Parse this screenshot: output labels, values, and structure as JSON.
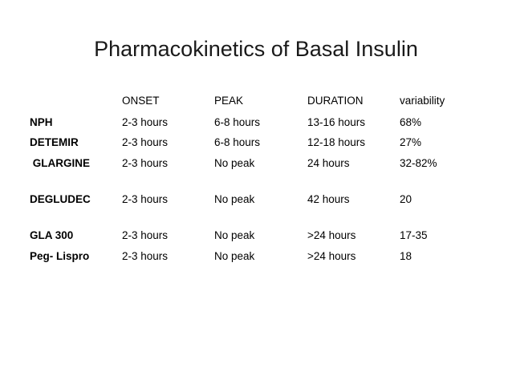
{
  "slide": {
    "title": "Pharmacokinetics of Basal Insulin"
  },
  "table": {
    "headers": [
      "ONSET",
      "PEAK",
      "DURATION",
      "variability"
    ],
    "rows": [
      {
        "name": "NPH",
        "cells": [
          "2-3 hours",
          "6-8 hours",
          "13-16 hours",
          "68%"
        ]
      },
      {
        "name": "DETEMIR",
        "cells": [
          "2-3 hours",
          "6-8 hours",
          "12-18 hours",
          "27%"
        ]
      },
      {
        "name": " GLARGINE",
        "cells": [
          "2-3 hours",
          "No peak",
          "24 hours",
          "32-82%"
        ]
      },
      {
        "name": "DEGLUDEC",
        "cells": [
          "2-3 hours",
          "No peak",
          "42 hours",
          "20"
        ]
      },
      {
        "name": "GLA 300",
        "cells": [
          "2-3 hours",
          "No peak",
          ">24 hours",
          "17-35"
        ]
      },
      {
        "name": "Peg- Lispro",
        "cells": [
          "2-3 hours",
          "No peak",
          ">24 hours",
          "18"
        ]
      }
    ]
  }
}
